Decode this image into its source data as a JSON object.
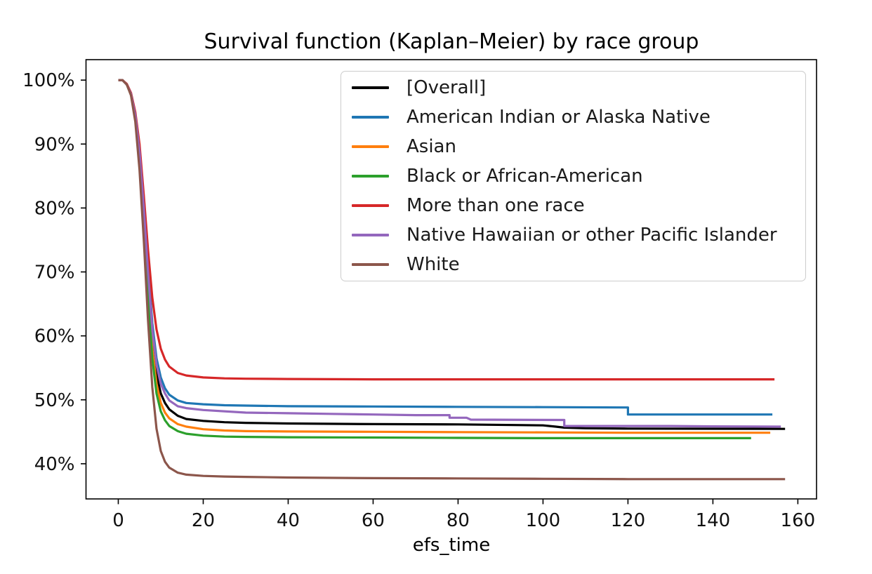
{
  "chart_data": {
    "type": "line",
    "title": "Survival function (Kaplan–Meier) by race group",
    "xlabel": "efs_time",
    "ylabel": "",
    "grid": false,
    "legend_location": "upper center inside plot",
    "xlim": [
      -7.6,
      164.4
    ],
    "ylim": [
      34.5,
      103.2
    ],
    "x_tick_values": [
      0,
      20,
      40,
      60,
      80,
      100,
      120,
      140,
      160
    ],
    "x_tick_labels": [
      "0",
      "20",
      "40",
      "60",
      "80",
      "100",
      "120",
      "140",
      "160"
    ],
    "y_tick_values": [
      100,
      90,
      80,
      70,
      60,
      50,
      40
    ],
    "y_tick_labels": [
      "100%",
      "90%",
      "80%",
      "70%",
      "60%",
      "50%",
      "40%"
    ],
    "y_unit": "percent survival",
    "series": [
      {
        "name": "[Overall]",
        "color": "#000000",
        "points": [
          [
            0,
            100
          ],
          [
            1,
            100
          ],
          [
            2,
            99.3
          ],
          [
            3,
            97.8
          ],
          [
            4,
            94.5
          ],
          [
            5,
            88.5
          ],
          [
            6,
            79.5
          ],
          [
            7,
            69
          ],
          [
            8,
            59.5
          ],
          [
            9,
            54
          ],
          [
            10,
            51
          ],
          [
            11,
            49.5
          ],
          [
            12,
            48.5
          ],
          [
            14,
            47.5
          ],
          [
            16,
            47
          ],
          [
            20,
            46.7
          ],
          [
            25,
            46.5
          ],
          [
            30,
            46.4
          ],
          [
            40,
            46.3
          ],
          [
            60,
            46.2
          ],
          [
            80,
            46.15
          ],
          [
            95,
            46.05
          ],
          [
            100,
            46
          ],
          [
            103,
            45.8
          ],
          [
            105,
            45.65
          ],
          [
            110,
            45.55
          ],
          [
            120,
            45.5
          ],
          [
            157,
            45.45
          ]
        ]
      },
      {
        "name": "American Indian or Alaska Native",
        "color": "#1f77b4",
        "points": [
          [
            0,
            100
          ],
          [
            1,
            100
          ],
          [
            2,
            99.3
          ],
          [
            3,
            97.8
          ],
          [
            4,
            94.5
          ],
          [
            5,
            89
          ],
          [
            6,
            80.5
          ],
          [
            7,
            71
          ],
          [
            8,
            62
          ],
          [
            9,
            56.5
          ],
          [
            10,
            53.5
          ],
          [
            11,
            51.8
          ],
          [
            12,
            50.8
          ],
          [
            14,
            49.9
          ],
          [
            16,
            49.5
          ],
          [
            20,
            49.3
          ],
          [
            25,
            49.15
          ],
          [
            30,
            49.1
          ],
          [
            40,
            49
          ],
          [
            60,
            48.95
          ],
          [
            80,
            48.9
          ],
          [
            100,
            48.85
          ],
          [
            120,
            48.8
          ],
          [
            120,
            47.7
          ],
          [
            154,
            47.7
          ]
        ]
      },
      {
        "name": "Asian",
        "color": "#ff7f0e",
        "points": [
          [
            0,
            100
          ],
          [
            1,
            100
          ],
          [
            2,
            99.3
          ],
          [
            3,
            97.7
          ],
          [
            4,
            94
          ],
          [
            5,
            87.5
          ],
          [
            6,
            78
          ],
          [
            7,
            67.5
          ],
          [
            8,
            58
          ],
          [
            9,
            52.5
          ],
          [
            10,
            49.5
          ],
          [
            11,
            48
          ],
          [
            12,
            47.1
          ],
          [
            14,
            46.2
          ],
          [
            16,
            45.8
          ],
          [
            20,
            45.4
          ],
          [
            25,
            45.2
          ],
          [
            30,
            45.1
          ],
          [
            40,
            45.05
          ],
          [
            60,
            45
          ],
          [
            80,
            44.95
          ],
          [
            100,
            44.9
          ],
          [
            120,
            44.85
          ],
          [
            153.5,
            44.85
          ]
        ]
      },
      {
        "name": "Black or African-American",
        "color": "#2ca02c",
        "points": [
          [
            0,
            100
          ],
          [
            1,
            100
          ],
          [
            2,
            99.3
          ],
          [
            3,
            97.7
          ],
          [
            4,
            94
          ],
          [
            5,
            87
          ],
          [
            6,
            77
          ],
          [
            7,
            66
          ],
          [
            8,
            56.5
          ],
          [
            9,
            51
          ],
          [
            10,
            48.2
          ],
          [
            11,
            46.8
          ],
          [
            12,
            45.9
          ],
          [
            14,
            45.1
          ],
          [
            16,
            44.7
          ],
          [
            20,
            44.4
          ],
          [
            25,
            44.25
          ],
          [
            30,
            44.2
          ],
          [
            40,
            44.15
          ],
          [
            60,
            44.1
          ],
          [
            80,
            44.05
          ],
          [
            100,
            44
          ],
          [
            149,
            44
          ]
        ]
      },
      {
        "name": "More than one race",
        "color": "#d62728",
        "points": [
          [
            0,
            100
          ],
          [
            1,
            100
          ],
          [
            2,
            99.4
          ],
          [
            3,
            98
          ],
          [
            4,
            95
          ],
          [
            5,
            90
          ],
          [
            6,
            82
          ],
          [
            7,
            73.5
          ],
          [
            8,
            66
          ],
          [
            9,
            61
          ],
          [
            10,
            58
          ],
          [
            11,
            56.3
          ],
          [
            12,
            55.2
          ],
          [
            14,
            54.2
          ],
          [
            16,
            53.8
          ],
          [
            20,
            53.5
          ],
          [
            25,
            53.35
          ],
          [
            30,
            53.3
          ],
          [
            40,
            53.25
          ],
          [
            60,
            53.2
          ],
          [
            100,
            53.2
          ],
          [
            154.5,
            53.2
          ]
        ]
      },
      {
        "name": "Native Hawaiian or other Pacific Islander",
        "color": "#9467bd",
        "points": [
          [
            0,
            100
          ],
          [
            1,
            100
          ],
          [
            2,
            99.3
          ],
          [
            3,
            97.8
          ],
          [
            4,
            94.5
          ],
          [
            5,
            88.8
          ],
          [
            6,
            80
          ],
          [
            7,
            70
          ],
          [
            8,
            61
          ],
          [
            9,
            55.5
          ],
          [
            10,
            52.5
          ],
          [
            11,
            51
          ],
          [
            12,
            49.9
          ],
          [
            14,
            49
          ],
          [
            16,
            48.7
          ],
          [
            20,
            48.4
          ],
          [
            30,
            48
          ],
          [
            40,
            47.9
          ],
          [
            50,
            47.8
          ],
          [
            60,
            47.7
          ],
          [
            70,
            47.6
          ],
          [
            78,
            47.6
          ],
          [
            78,
            47.2
          ],
          [
            82,
            47.2
          ],
          [
            83,
            46.9
          ],
          [
            105,
            46.85
          ],
          [
            105,
            45.9
          ],
          [
            130,
            45.9
          ],
          [
            140,
            45.85
          ],
          [
            156,
            45.8
          ]
        ]
      },
      {
        "name": "White",
        "color": "#8c564b",
        "points": [
          [
            0,
            100
          ],
          [
            1,
            100
          ],
          [
            2,
            99.3
          ],
          [
            3,
            97.6
          ],
          [
            4,
            93.5
          ],
          [
            5,
            86
          ],
          [
            6,
            75
          ],
          [
            7,
            62.5
          ],
          [
            8,
            52
          ],
          [
            9,
            45.5
          ],
          [
            10,
            42
          ],
          [
            11,
            40.3
          ],
          [
            12,
            39.4
          ],
          [
            14,
            38.6
          ],
          [
            16,
            38.3
          ],
          [
            20,
            38.1
          ],
          [
            25,
            38
          ],
          [
            30,
            37.95
          ],
          [
            40,
            37.85
          ],
          [
            60,
            37.75
          ],
          [
            80,
            37.7
          ],
          [
            100,
            37.65
          ],
          [
            120,
            37.6
          ],
          [
            157,
            37.6
          ]
        ]
      }
    ]
  }
}
